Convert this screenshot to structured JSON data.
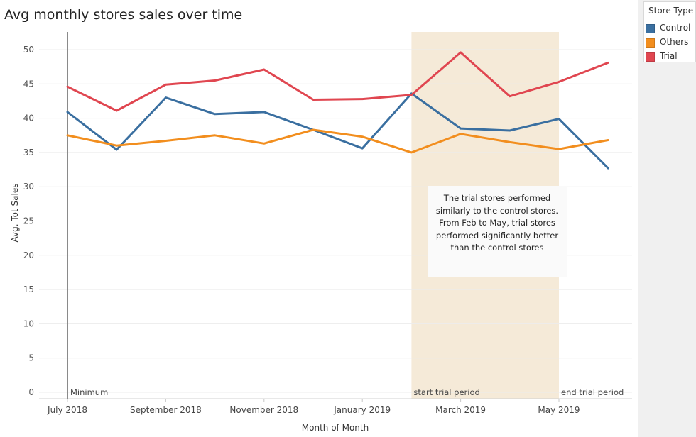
{
  "chart_data": {
    "type": "line",
    "title": "Avg monthly stores sales over time",
    "xlabel": "Month of Month",
    "ylabel": "Avg. Tot Sales",
    "ylim": [
      0,
      50
    ],
    "yticks": [
      0,
      5,
      10,
      15,
      20,
      25,
      30,
      35,
      40,
      45,
      50
    ],
    "x": [
      "2018-07",
      "2018-08",
      "2018-09",
      "2018-10",
      "2018-11",
      "2018-12",
      "2019-01",
      "2019-02",
      "2019-03",
      "2019-04",
      "2019-05",
      "2019-06"
    ],
    "xtick_labels": [
      {
        "at": 0,
        "label": "July 2018"
      },
      {
        "at": 2,
        "label": "September 2018"
      },
      {
        "at": 4,
        "label": "November 2018"
      },
      {
        "at": 6,
        "label": "January 2019"
      },
      {
        "at": 8,
        "label": "March 2019"
      },
      {
        "at": 10,
        "label": "May 2019"
      }
    ],
    "series": [
      {
        "name": "Control",
        "color": "#3a6fa0",
        "values": [
          40.9,
          35.4,
          43.0,
          40.6,
          40.9,
          38.3,
          35.6,
          43.6,
          38.5,
          38.2,
          39.9,
          32.7
        ]
      },
      {
        "name": "Others",
        "color": "#f28e1e",
        "values": [
          37.5,
          36.0,
          36.7,
          37.5,
          36.3,
          38.3,
          37.3,
          35.0,
          37.7,
          36.5,
          35.5,
          36.8
        ]
      },
      {
        "name": "Trial",
        "color": "#e04650",
        "values": [
          44.6,
          41.1,
          44.9,
          45.5,
          47.1,
          42.7,
          42.8,
          43.4,
          49.6,
          43.2,
          45.3,
          48.1
        ]
      }
    ],
    "reference_line": {
      "at": 0,
      "label": "Minimum"
    },
    "shaded_band": {
      "from": 7.0,
      "to": 10.0,
      "start_label": "start trial period",
      "end_label": "end trial period",
      "color": "#f5ead8"
    },
    "grid": true,
    "legend_position": "right"
  },
  "legend": {
    "title": "Store Type",
    "items": [
      {
        "label": "Control",
        "color": "#3a6fa0"
      },
      {
        "label": "Others",
        "color": "#f28e1e"
      },
      {
        "label": "Trial",
        "color": "#e04650"
      }
    ]
  },
  "annotation": {
    "text": "The trial stores performed similarly to the control stores. From Feb to May, trial stores performed significantly better than the control stores"
  }
}
